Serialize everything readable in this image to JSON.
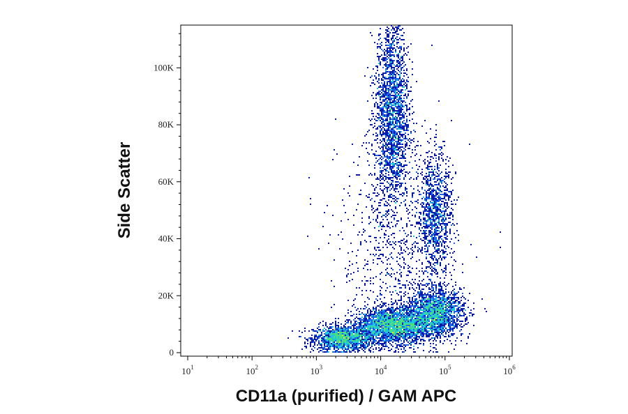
{
  "chart_data": {
    "type": "scatter",
    "subtype": "flow-cytometry-density-plot",
    "xlabel": "CD11a (purified) / GAM APC",
    "ylabel": "Side Scatter",
    "x_scale": "log",
    "xlim": [
      10,
      1000000
    ],
    "ylim": [
      0,
      115000
    ],
    "x_ticks": [
      {
        "base": "10",
        "exp": "1",
        "value": 10
      },
      {
        "base": "10",
        "exp": "2",
        "value": 100
      },
      {
        "base": "10",
        "exp": "3",
        "value": 1000
      },
      {
        "base": "10",
        "exp": "4",
        "value": 10000
      },
      {
        "base": "10",
        "exp": "5",
        "value": 100000
      },
      {
        "base": "10",
        "exp": "6",
        "value": 1000000
      }
    ],
    "y_ticks": [
      {
        "label": "0",
        "value": 0
      },
      {
        "label": "20K",
        "value": 20000
      },
      {
        "label": "40K",
        "value": 40000
      },
      {
        "label": "60K",
        "value": 60000
      },
      {
        "label": "80K",
        "value": 80000
      },
      {
        "label": "100K",
        "value": 100000
      }
    ],
    "grid": false,
    "color_scale": [
      "#0a1aa8",
      "#1e64e8",
      "#1ec8d8",
      "#4be07a",
      "#e8e030",
      "#f08a10",
      "#e01a10"
    ],
    "populations": [
      {
        "x_center": 2500,
        "y_center": 5000,
        "x_log_sd": 0.22,
        "y_sd": 2200,
        "n": 1600
      },
      {
        "x_center": 15000,
        "y_center": 9500,
        "x_log_sd": 0.28,
        "y_sd": 3000,
        "n": 2600
      },
      {
        "x_center": 70000,
        "y_center": 14000,
        "x_log_sd": 0.22,
        "y_sd": 4000,
        "n": 2000
      },
      {
        "x_center": 15000,
        "y_center": 85000,
        "x_log_sd": 0.13,
        "y_sd": 17000,
        "n": 2200
      },
      {
        "x_center": 70000,
        "y_center": 48000,
        "x_log_sd": 0.13,
        "y_sd": 11000,
        "n": 1100
      },
      {
        "x_center": 18000,
        "y_center": 35000,
        "x_log_sd": 0.45,
        "y_sd": 22000,
        "n": 900
      }
    ]
  }
}
